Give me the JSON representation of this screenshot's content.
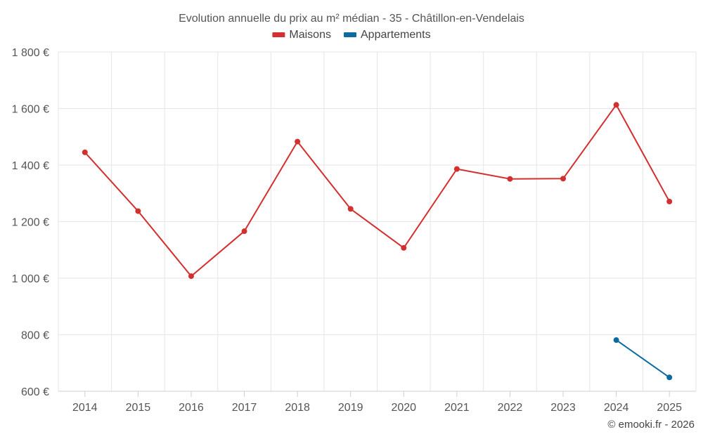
{
  "chart_data": {
    "type": "line",
    "title": "Evolution annuelle du prix au m² médian - 35 - Châtillon-en-Vendelais",
    "categories": [
      "2014",
      "2015",
      "2016",
      "2017",
      "2018",
      "2019",
      "2020",
      "2021",
      "2022",
      "2023",
      "2024",
      "2025"
    ],
    "series": [
      {
        "name": "Maisons",
        "color": "#d32f2f",
        "values": [
          1445,
          1237,
          1007,
          1166,
          1483,
          1245,
          1107,
          1386,
          1351,
          1352,
          1613,
          1271
        ]
      },
      {
        "name": "Appartements",
        "color": "#0b6aa2",
        "values": [
          null,
          null,
          null,
          null,
          null,
          null,
          null,
          null,
          null,
          null,
          781,
          649
        ]
      }
    ],
    "ylim": [
      600,
      1800
    ],
    "yticks": [
      600,
      800,
      1000,
      1200,
      1400,
      1600,
      1800
    ],
    "ytick_labels": [
      "600 €",
      "800 €",
      "1 000 €",
      "1 200 €",
      "1 400 €",
      "1 600 €",
      "1 800 €"
    ],
    "grid": true,
    "legend_position": "top-center"
  },
  "credit": "© emooki.fr - 2026"
}
